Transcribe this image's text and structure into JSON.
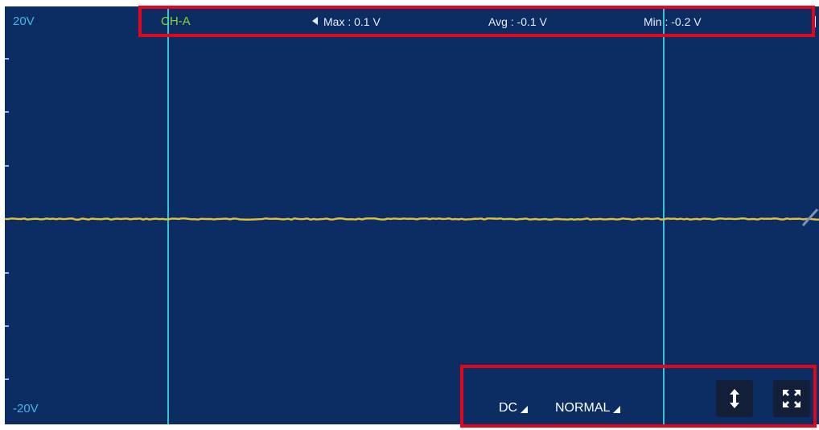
{
  "scale": {
    "top_label": "20V",
    "bottom_label": "-20V"
  },
  "channel": {
    "label": "CH-A"
  },
  "stats": {
    "max": "Max : 0.1 V",
    "avg": "Avg : -0.1 V",
    "min": "Min : -0.2 V"
  },
  "controls": {
    "coupling": "DC",
    "trigger_mode": "NORMAL"
  },
  "icons": {
    "vertical_adjust": "vertical-arrows-icon",
    "fullscreen": "fullscreen-icon",
    "stats_prev": "triangle-left-icon"
  },
  "colors": {
    "screen_background": "#0b2d63",
    "trace": "#e0c23a",
    "cursor": "#39c3d6",
    "channel": "#8ed32a",
    "scale_text": "#40b8e8",
    "highlight": "#e3061b"
  }
}
